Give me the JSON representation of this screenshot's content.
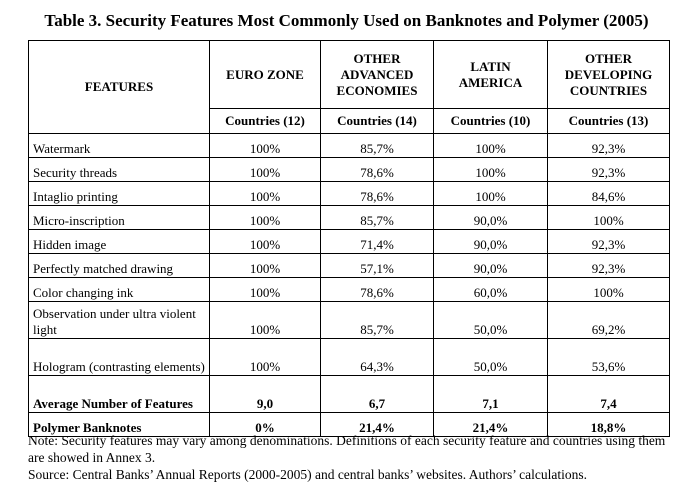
{
  "title": "Table 3. Security Features Most Commonly Used on Banknotes and Polymer (2005)",
  "table": {
    "header": [
      "FEATURES",
      "EURO ZONE",
      "OTHER ADVANCED ECONOMIES",
      "LATIN AMERICA",
      "OTHER DEVELOPING COUNTRIES"
    ],
    "subheader": [
      "Countries (12)",
      "Countries (14)",
      "Countries (10)",
      "Countries (13)"
    ],
    "rows": [
      [
        "Watermark",
        "100%",
        "85,7%",
        "100%",
        "92,3%"
      ],
      [
        "Security threads",
        "100%",
        "78,6%",
        "100%",
        "92,3%"
      ],
      [
        "Intaglio printing",
        "100%",
        "78,6%",
        "100%",
        "84,6%"
      ],
      [
        "Micro-inscription",
        "100%",
        "85,7%",
        "90,0%",
        "100%"
      ],
      [
        "Hidden image",
        "100%",
        "71,4%",
        "90,0%",
        "92,3%"
      ],
      [
        "Perfectly matched drawing",
        "100%",
        "57,1%",
        "90,0%",
        "92,3%"
      ],
      [
        "Color changing ink",
        "100%",
        "78,6%",
        "60,0%",
        "100%"
      ],
      [
        "Observation under ultra violent light",
        "100%",
        "85,7%",
        "50,0%",
        "69,2%"
      ],
      [
        "Hologram (contrasting elements)",
        "100%",
        "64,3%",
        "50,0%",
        "53,6%"
      ],
      [
        "Average Number of Features",
        "9,0",
        "6,7",
        "7,1",
        "7,4"
      ],
      [
        "Polymer Banknotes",
        "0%",
        "21,4%",
        "21,4%",
        "18,8%"
      ]
    ]
  },
  "notes": [
    "Note: Security features may vary among denominations. Definitions of each security feature and countries using them are showed in Annex 3.",
    "Source: Central Banks’ Annual Reports (2000-2005) and central banks’ websites. Authors’ calculations."
  ]
}
